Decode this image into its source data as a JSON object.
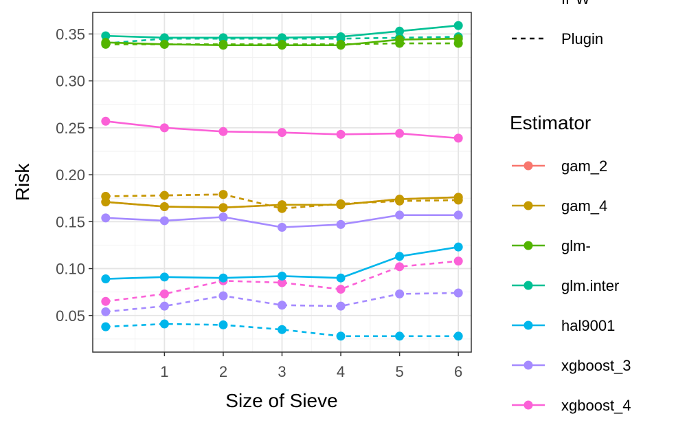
{
  "chart_data": {
    "type": "line",
    "xlabel": "Size of Sieve",
    "ylabel": "Risk",
    "x_ticks": [
      "1",
      "2",
      "3",
      "4",
      "5",
      "6"
    ],
    "y_ticks": [
      "0.05",
      "0.10",
      "0.15",
      "0.20",
      "0.25",
      "0.30",
      "0.35"
    ],
    "xlim": [
      -0.22,
      6.22
    ],
    "ylim": [
      0.011,
      0.373
    ],
    "grid": true,
    "x": [
      0,
      1,
      2,
      3,
      4,
      5,
      6
    ],
    "linetype_legend": {
      "entries": [
        {
          "label": "IPW",
          "linetype": "solid"
        },
        {
          "label": "Plugin",
          "linetype": "dashed"
        }
      ]
    },
    "color_legend": {
      "title": "Estimator",
      "entries": [
        {
          "label": "gam_2",
          "color": "#F8766D"
        },
        {
          "label": "gam_4",
          "color": "#C49A00"
        },
        {
          "label": "glm-",
          "color": "#53B400"
        },
        {
          "label": "glm.inter",
          "color": "#00C094"
        },
        {
          "label": "hal9001",
          "color": "#00B6EB"
        },
        {
          "label": "xgboost_3",
          "color": "#A58AFF"
        },
        {
          "label": "xgboost_4",
          "color": "#FB61D7"
        }
      ]
    },
    "series": [
      {
        "estimator": "glm.inter",
        "linetype": "solid",
        "color": "#00C094",
        "values": [
          0.348,
          0.346,
          0.346,
          0.346,
          0.347,
          0.353,
          0.359
        ]
      },
      {
        "estimator": "glm.inter",
        "linetype": "dashed",
        "color": "#00C094",
        "values": [
          0.34,
          0.345,
          0.345,
          0.345,
          0.345,
          0.346,
          0.347
        ]
      },
      {
        "estimator": "glm-",
        "linetype": "solid",
        "color": "#53B400",
        "values": [
          0.341,
          0.339,
          0.338,
          0.338,
          0.338,
          0.344,
          0.345
        ]
      },
      {
        "estimator": "glm-",
        "linetype": "dashed",
        "color": "#53B400",
        "values": [
          0.339,
          0.339,
          0.339,
          0.339,
          0.339,
          0.34,
          0.34
        ]
      },
      {
        "estimator": "xgboost_4",
        "linetype": "solid",
        "color": "#FB61D7",
        "values": [
          0.257,
          0.25,
          0.246,
          0.245,
          0.243,
          0.244,
          0.239
        ]
      },
      {
        "estimator": "xgboost_4",
        "linetype": "dashed",
        "color": "#FB61D7",
        "values": [
          0.065,
          0.073,
          0.087,
          0.085,
          0.078,
          0.102,
          0.108
        ]
      },
      {
        "estimator": "gam_2",
        "linetype": "solid",
        "color": "#F8766D",
        "values": [
          0.171,
          0.166,
          0.165,
          0.168,
          0.168,
          0.174,
          0.176
        ]
      },
      {
        "estimator": "gam_2",
        "linetype": "dashed",
        "color": "#F8766D",
        "values": [
          0.177,
          0.178,
          0.179,
          0.164,
          0.169,
          0.172,
          0.173
        ]
      },
      {
        "estimator": "gam_4",
        "linetype": "solid",
        "color": "#C49A00",
        "values": [
          0.171,
          0.166,
          0.165,
          0.168,
          0.168,
          0.174,
          0.176
        ]
      },
      {
        "estimator": "gam_4",
        "linetype": "dashed",
        "color": "#C49A00",
        "values": [
          0.177,
          0.178,
          0.179,
          0.164,
          0.169,
          0.172,
          0.173
        ]
      },
      {
        "estimator": "xgboost_3",
        "linetype": "solid",
        "color": "#A58AFF",
        "values": [
          0.154,
          0.151,
          0.155,
          0.144,
          0.147,
          0.157,
          0.157
        ]
      },
      {
        "estimator": "xgboost_3",
        "linetype": "dashed",
        "color": "#A58AFF",
        "values": [
          0.054,
          0.06,
          0.071,
          0.061,
          0.06,
          0.073,
          0.074
        ]
      },
      {
        "estimator": "hal9001",
        "linetype": "solid",
        "color": "#00B6EB",
        "values": [
          0.089,
          0.091,
          0.09,
          0.092,
          0.09,
          0.113,
          0.123
        ]
      },
      {
        "estimator": "hal9001",
        "linetype": "dashed",
        "color": "#00B6EB",
        "values": [
          0.038,
          0.041,
          0.04,
          0.035,
          0.028,
          0.028,
          0.028
        ]
      }
    ]
  }
}
